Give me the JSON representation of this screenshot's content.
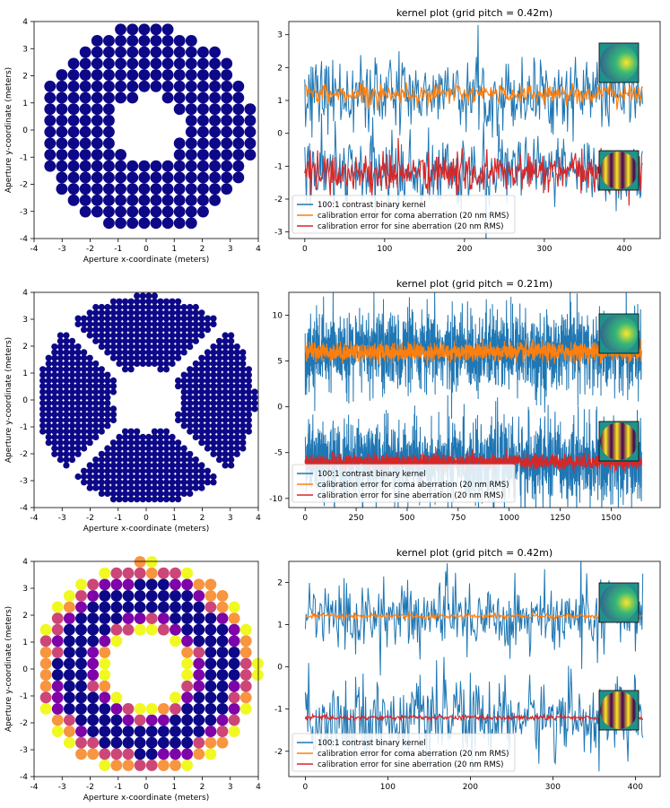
{
  "chart_data": [
    {
      "type": "scatter",
      "xlabel": "Aperture x-coordinate (meters)",
      "ylabel": "Aperture y-coordinate (meters)",
      "xlim": [
        -4,
        4
      ],
      "ylim": [
        -4,
        4
      ],
      "xticks": [
        -4,
        -3,
        -2,
        -1,
        0,
        1,
        2,
        3,
        4
      ],
      "yticks": [
        -4,
        -3,
        -2,
        -1,
        0,
        1,
        2,
        3,
        4
      ],
      "aperture_radius": 3.85,
      "obscuration_radius": 1.25,
      "grid_pitch": 0.42,
      "color": "#0d0887"
    },
    {
      "type": "line",
      "title": "kernel plot (grid pitch = 0.42m)",
      "xlim": [
        -20,
        445
      ],
      "ylim": [
        -3.2,
        3.4
      ],
      "xticks": [
        0,
        100,
        200,
        300,
        400
      ],
      "yticks": [
        -3,
        -2,
        -1,
        0,
        1,
        2,
        3
      ],
      "n_points": 424,
      "series": [
        {
          "name": "100:1 contrast binary kernel",
          "color": "#1f77b4",
          "offsets": [
            1.2,
            -1.2
          ],
          "amplitude": 0.55
        },
        {
          "name": "calibration error for coma aberration (20 nm RMS)",
          "color": "#ff7f0e",
          "offset": 1.2,
          "amplitude": 0.15
        },
        {
          "name": "calibration error for sine aberration (20 nm RMS)",
          "color": "#d62728",
          "offset": -1.2,
          "amplitude": 0.3
        }
      ],
      "legend_position": "lower-left"
    },
    {
      "type": "scatter",
      "xlabel": "Aperture x-coordinate (meters)",
      "ylabel": "Aperture y-coordinate (meters)",
      "xlim": [
        -4,
        4
      ],
      "ylim": [
        -4,
        4
      ],
      "xticks": [
        -4,
        -3,
        -2,
        -1,
        0,
        1,
        2,
        3,
        4
      ],
      "yticks": [
        -4,
        -3,
        -2,
        -1,
        0,
        1,
        2,
        3,
        4
      ],
      "aperture_radius": 3.9,
      "obscuration_radius": 1.2,
      "grid_pitch": 0.21,
      "color": "#0d0887"
    },
    {
      "type": "line",
      "title": "kernel plot (grid pitch = 0.21m)",
      "xlim": [
        -80,
        1740
      ],
      "ylim": [
        -11,
        12.5
      ],
      "xticks": [
        0,
        250,
        500,
        750,
        1000,
        1250,
        1500
      ],
      "yticks": [
        -10,
        -5,
        0,
        5,
        10
      ],
      "n_points": 1650,
      "series": [
        {
          "name": "100:1 contrast binary kernel",
          "color": "#1f77b4",
          "offsets": [
            6,
            -6
          ],
          "amplitude": 2.2
        },
        {
          "name": "calibration error for coma aberration (20 nm RMS)",
          "color": "#ff7f0e",
          "offset": 6,
          "amplitude": 0.5
        },
        {
          "name": "calibration error for sine aberration (20 nm RMS)",
          "color": "#d62728",
          "offset": -6,
          "amplitude": 0.4
        }
      ],
      "legend_position": "lower-left"
    },
    {
      "type": "scatter",
      "xlabel": "Aperture x-coordinate (meters)",
      "ylabel": "Aperture y-coordinate (meters)",
      "xlim": [
        -4,
        4
      ],
      "ylim": [
        -4,
        4
      ],
      "xticks": [
        -4,
        -3,
        -2,
        -1,
        0,
        1,
        2,
        3,
        4
      ],
      "yticks": [
        -4,
        -3,
        -2,
        -1,
        0,
        1,
        2,
        3,
        4
      ],
      "aperture_radius": 4.0,
      "obscuration_radius": 1.25,
      "grid_pitch": 0.42,
      "colors": [
        "#0d0887",
        "#7e03a8",
        "#cc4778",
        "#f89540",
        "#f0f921"
      ]
    },
    {
      "type": "line",
      "title": "kernel plot (grid pitch = 0.42m)",
      "xlim": [
        -20,
        430
      ],
      "ylim": [
        -2.6,
        2.5
      ],
      "xticks": [
        0,
        100,
        200,
        300,
        400
      ],
      "yticks": [
        -2,
        -1,
        0,
        1,
        2
      ],
      "n_points": 410,
      "series": [
        {
          "name": "100:1 contrast binary kernel",
          "color": "#1f77b4",
          "offsets": [
            1.2,
            -1.2
          ],
          "amplitude": 0.45
        },
        {
          "name": "calibration error for coma aberration (20 nm RMS)",
          "color": "#ff7f0e",
          "offset": 1.2,
          "amplitude": 0.03
        },
        {
          "name": "calibration error for sine aberration (20 nm RMS)",
          "color": "#d62728",
          "offset": -1.2,
          "amplitude": 0.03
        }
      ],
      "legend_position": "lower-left"
    }
  ]
}
